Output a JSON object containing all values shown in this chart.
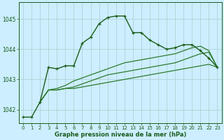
{
  "title": "Graphe pression niveau de la mer (hPa)",
  "background_color": "#cceeff",
  "grid_color": "#aacccc",
  "line_color_main": "#1a5c1a",
  "line_color_flat": "#2d7a2d",
  "xlim": [
    -0.5,
    23.5
  ],
  "ylim": [
    1041.55,
    1045.55
  ],
  "yticks": [
    1042,
    1043,
    1044,
    1045
  ],
  "xticks": [
    0,
    1,
    2,
    3,
    4,
    5,
    6,
    7,
    8,
    9,
    10,
    11,
    12,
    13,
    14,
    15,
    16,
    17,
    18,
    19,
    20,
    21,
    22,
    23
  ],
  "series1_x": [
    0,
    1,
    2,
    3,
    4,
    5,
    6,
    7,
    8,
    9,
    10,
    11,
    12,
    13,
    14,
    15,
    16,
    17,
    18,
    19,
    20,
    21,
    22,
    23
  ],
  "series1_y": [
    1041.75,
    1041.75,
    1042.25,
    1043.4,
    1043.35,
    1043.45,
    1043.45,
    1044.2,
    1044.4,
    1044.85,
    1045.05,
    1045.1,
    1045.1,
    1044.55,
    1044.55,
    1044.3,
    1044.15,
    1044.0,
    1044.05,
    1044.15,
    1044.15,
    1043.95,
    1043.7,
    1043.4
  ],
  "series2_x": [
    2,
    3,
    4,
    5,
    6,
    7,
    8,
    9,
    10,
    11,
    12,
    13,
    14,
    15,
    16,
    17,
    18,
    19,
    20,
    21,
    22,
    23
  ],
  "series2_y": [
    1042.25,
    1042.65,
    1042.65,
    1042.7,
    1042.7,
    1042.75,
    1042.8,
    1042.85,
    1042.9,
    1042.95,
    1043.0,
    1043.05,
    1043.1,
    1043.15,
    1043.2,
    1043.25,
    1043.3,
    1043.35,
    1043.4,
    1043.45,
    1043.5,
    1043.4
  ],
  "series3_x": [
    2,
    3,
    4,
    5,
    6,
    7,
    8,
    9,
    10,
    11,
    12,
    13,
    14,
    15,
    16,
    17,
    18,
    19,
    20,
    21,
    22,
    23
  ],
  "series3_y": [
    1042.25,
    1042.65,
    1042.65,
    1042.7,
    1042.75,
    1042.85,
    1042.95,
    1043.05,
    1043.15,
    1043.2,
    1043.25,
    1043.3,
    1043.35,
    1043.4,
    1043.45,
    1043.5,
    1043.55,
    1043.65,
    1043.75,
    1043.85,
    1043.9,
    1043.4
  ],
  "series4_x": [
    2,
    3,
    4,
    5,
    6,
    7,
    8,
    9,
    10,
    11,
    12,
    13,
    14,
    15,
    16,
    17,
    18,
    19,
    20,
    21,
    22,
    23
  ],
  "series4_y": [
    1042.25,
    1042.65,
    1042.7,
    1042.8,
    1042.95,
    1043.05,
    1043.15,
    1043.25,
    1043.35,
    1043.45,
    1043.55,
    1043.6,
    1043.65,
    1043.7,
    1043.75,
    1043.8,
    1043.85,
    1043.95,
    1044.05,
    1044.1,
    1043.95,
    1043.4
  ]
}
